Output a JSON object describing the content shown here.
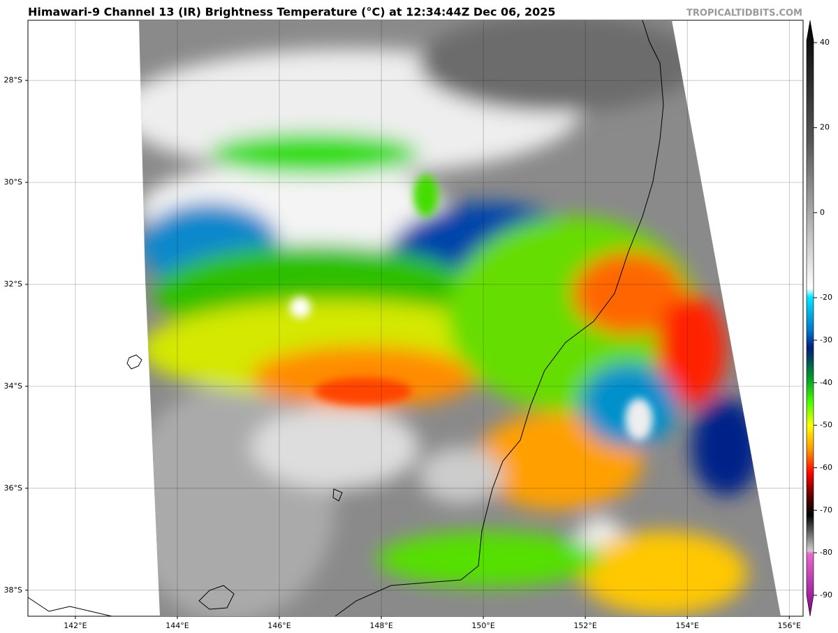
{
  "header": {
    "title": "Himawari-9 Channel 13 (IR) Brightness Temperature (°C) at 12:34:44Z Dec 06, 2025",
    "watermark": "TROPICALTIDBITS.COM"
  },
  "map": {
    "lonlim": [
      141.07,
      156.27
    ],
    "latlim": [
      -38.51,
      -26.82
    ],
    "lon_ticks": [
      {
        "value": 142,
        "label": "142°E"
      },
      {
        "value": 144,
        "label": "144°E"
      },
      {
        "value": 146,
        "label": "146°E"
      },
      {
        "value": 148,
        "label": "148°E"
      },
      {
        "value": 150,
        "label": "150°E"
      },
      {
        "value": 152,
        "label": "152°E"
      },
      {
        "value": 154,
        "label": "154°E"
      },
      {
        "value": 156,
        "label": "156°E"
      }
    ],
    "lat_ticks": [
      {
        "value": -28,
        "label": "28°S"
      },
      {
        "value": -30,
        "label": "30°S"
      },
      {
        "value": -32,
        "label": "32°S"
      },
      {
        "value": -34,
        "label": "34°S"
      },
      {
        "value": -36,
        "label": "36°S"
      },
      {
        "value": -38,
        "label": "38°S"
      }
    ]
  },
  "colorbar": {
    "lim": [
      -94.93,
      45.26
    ],
    "ticks": [
      40,
      20,
      0,
      -20,
      -30,
      -40,
      -50,
      -60,
      -70,
      -80,
      -90
    ]
  }
}
